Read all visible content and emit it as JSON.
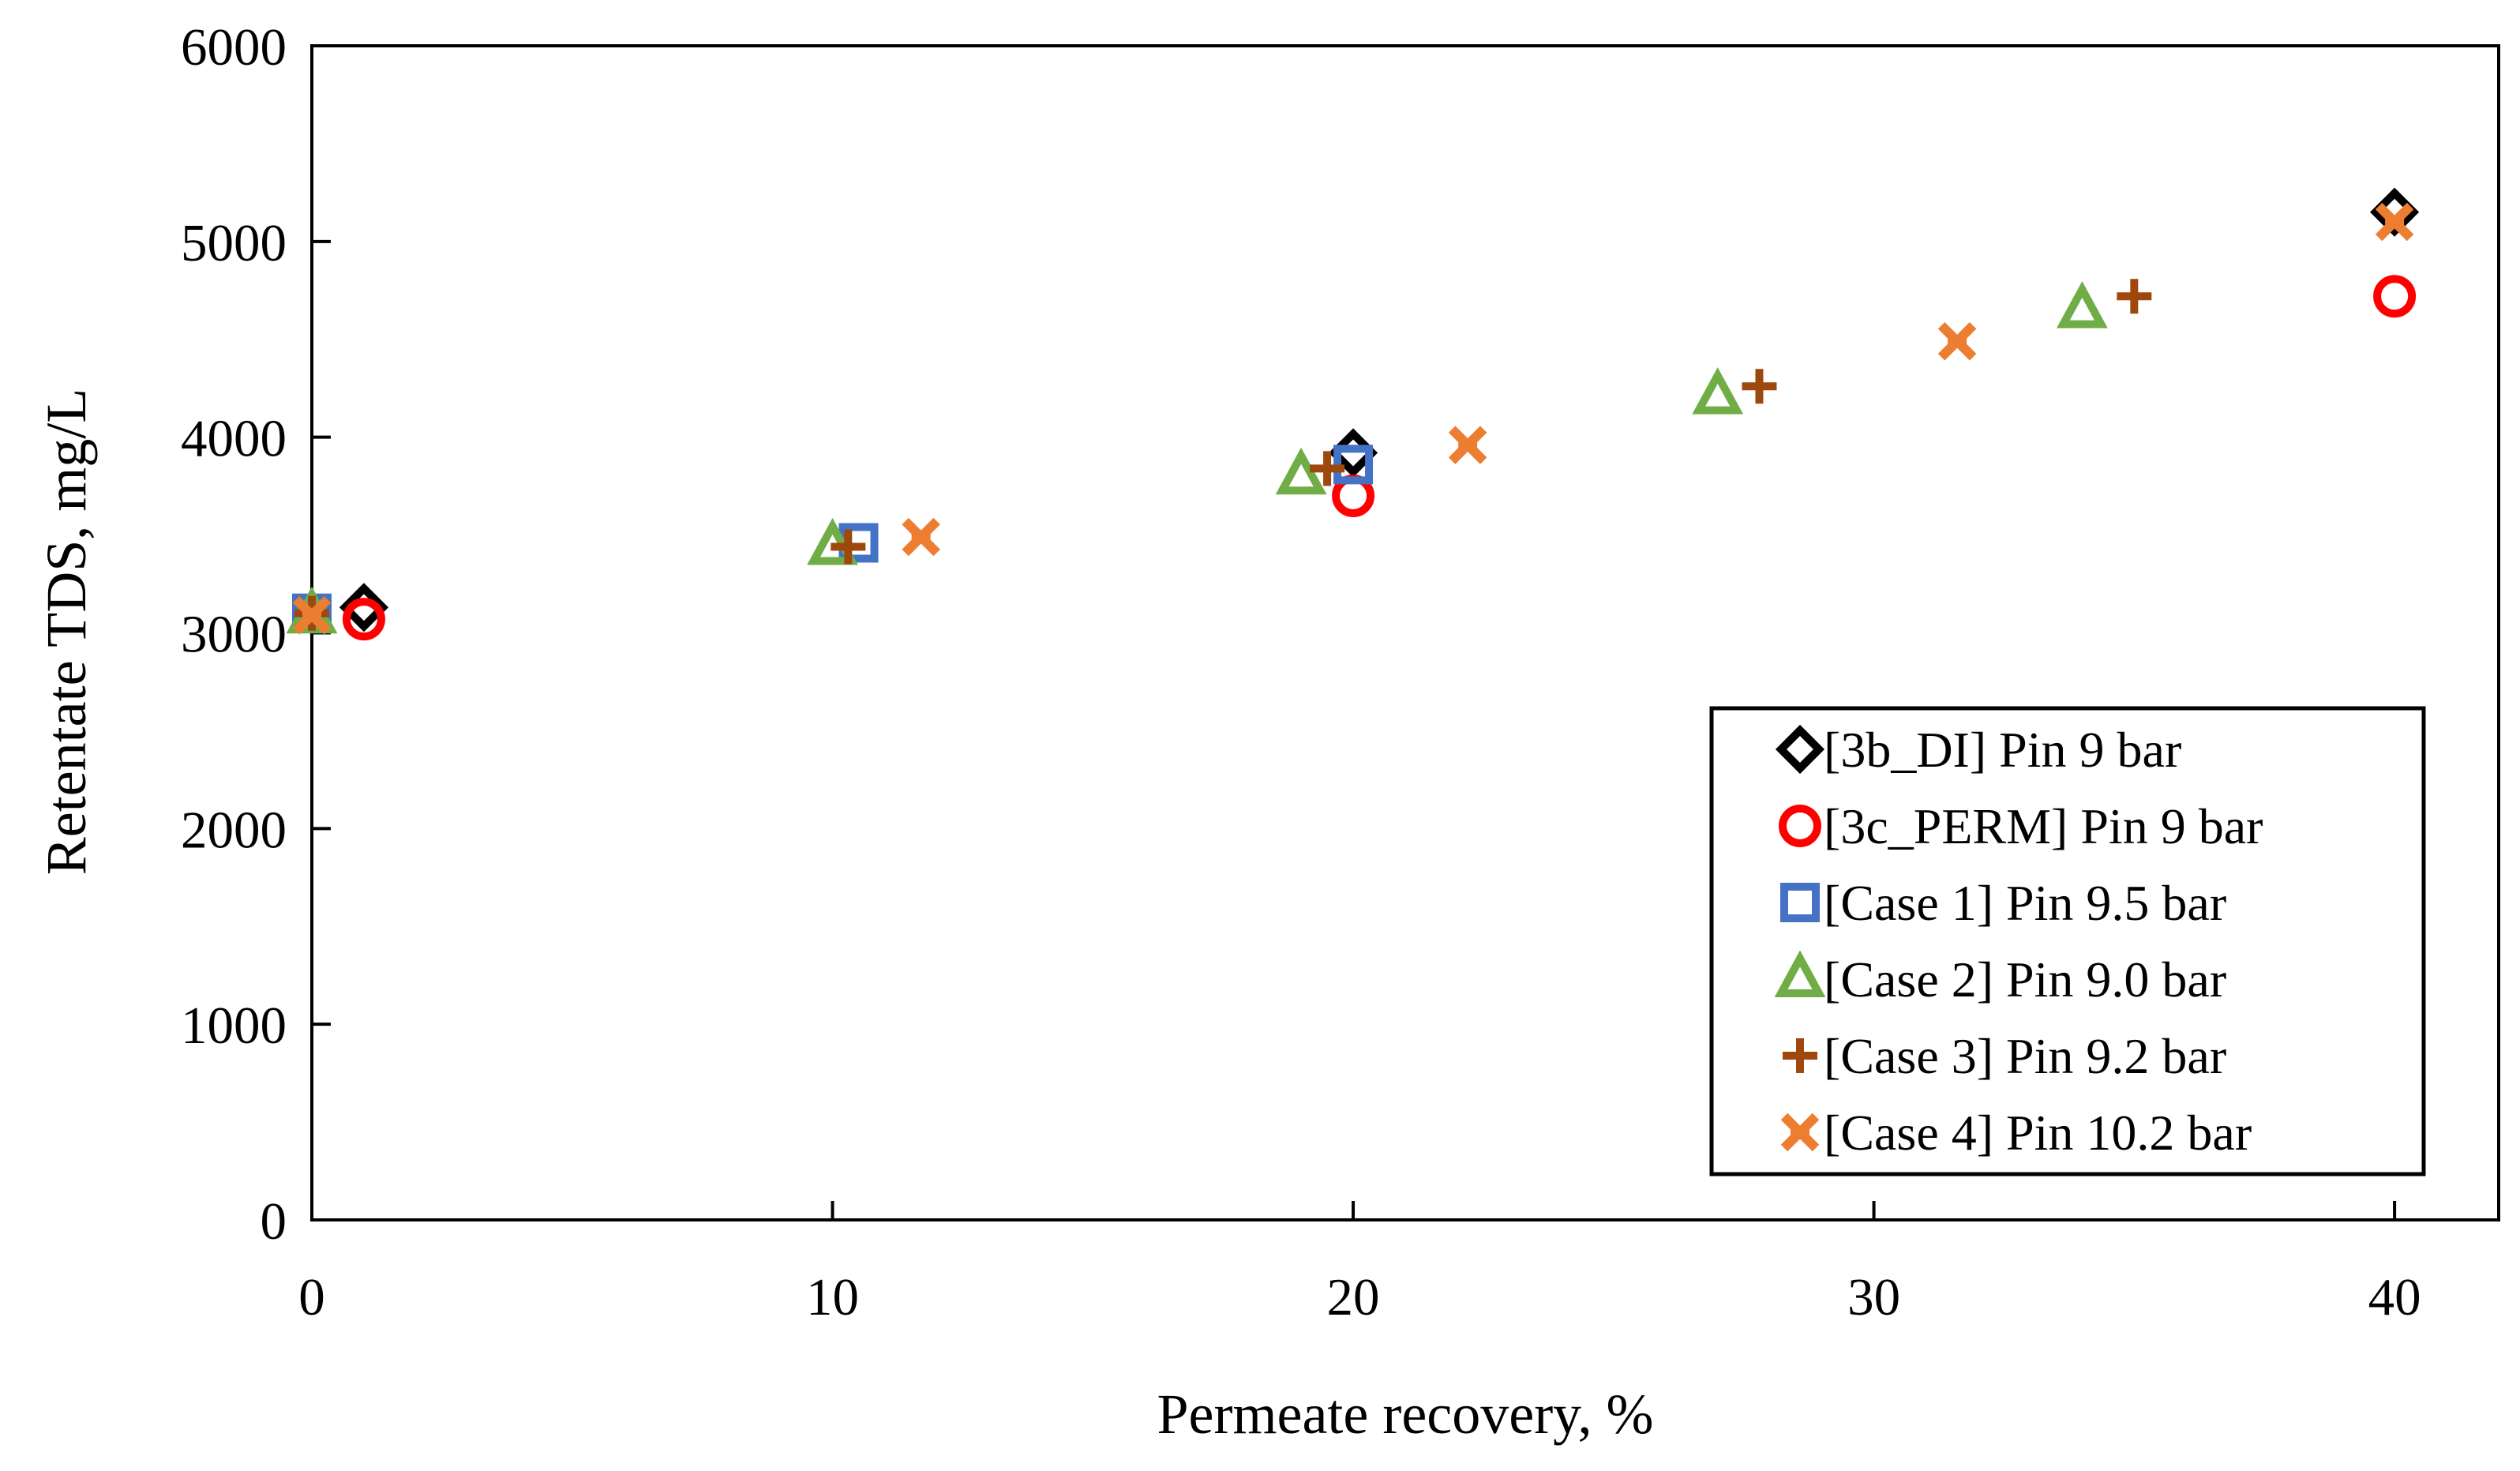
{
  "chart_data": {
    "type": "scatter",
    "title": "",
    "xlabel": "Permeate recovery, %",
    "ylabel": "Retentate TDS, mg/L",
    "xlim": [
      0,
      42
    ],
    "ylim": [
      0,
      6000
    ],
    "xticks": [
      0,
      10,
      20,
      30,
      40
    ],
    "yticks": [
      0,
      1000,
      2000,
      3000,
      4000,
      5000,
      6000
    ],
    "grid": false,
    "legend_position": "bottom-right",
    "series": [
      {
        "name": "[3b_DI] Pin 9 bar",
        "marker": "diamond",
        "color": "#000000",
        "points": [
          [
            1,
            3130
          ],
          [
            20,
            3920
          ],
          [
            40,
            5150
          ]
        ]
      },
      {
        "name": "[3c_PERM] Pin 9 bar",
        "marker": "circle",
        "color": "#ff0000",
        "points": [
          [
            1,
            3070
          ],
          [
            20,
            3700
          ],
          [
            40,
            4720
          ]
        ]
      },
      {
        "name": "[Case 1] Pin 9.5 bar",
        "marker": "square",
        "color": "#4472c4",
        "points": [
          [
            0,
            3100
          ],
          [
            10.5,
            3460
          ],
          [
            20,
            3860
          ]
        ]
      },
      {
        "name": "[Case 2] Pin 9.0 bar",
        "marker": "triangle",
        "color": "#70ad47",
        "points": [
          [
            0,
            3090
          ],
          [
            10,
            3440
          ],
          [
            19,
            3800
          ],
          [
            27,
            4210
          ],
          [
            34,
            4650
          ]
        ]
      },
      {
        "name": "[Case 3] Pin 9.2 bar",
        "marker": "plus",
        "color": "#9e480e",
        "points": [
          [
            0,
            3100
          ],
          [
            10.3,
            3440
          ],
          [
            19.5,
            3840
          ],
          [
            27.8,
            4260
          ],
          [
            35,
            4720
          ]
        ]
      },
      {
        "name": "[Case 4] Pin 10.2 bar",
        "marker": "x",
        "color": "#ed7d31",
        "points": [
          [
            0,
            3090
          ],
          [
            11.7,
            3490
          ],
          [
            22.2,
            3960
          ],
          [
            31.6,
            4490
          ],
          [
            40,
            5100
          ]
        ]
      }
    ]
  }
}
